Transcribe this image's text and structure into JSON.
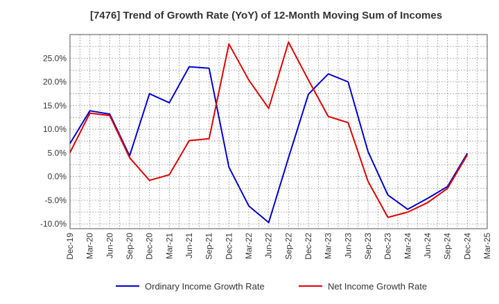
{
  "chart_data": {
    "type": "line",
    "title": "[7476]  Trend of Growth Rate (YoY) of 12-Month Moving Sum of Incomes",
    "xlabel": "",
    "ylabel": "",
    "categories": [
      "Dec-19",
      "Mar-20",
      "Jun-20",
      "Sep-20",
      "Dec-20",
      "Mar-21",
      "Jun-21",
      "Sep-21",
      "Dec-21",
      "Mar-22",
      "Jun-22",
      "Sep-22",
      "Dec-22",
      "Mar-23",
      "Jun-23",
      "Sep-23",
      "Dec-23",
      "Mar-24",
      "Jun-24",
      "Sep-24",
      "Dec-24",
      "Mar-25"
    ],
    "y_ticks": [
      "25.0%",
      "20.0%",
      "15.0%",
      "10.0%",
      "5.0%",
      "0.0%",
      "-5.0%",
      "-10.0%"
    ],
    "y_tick_values": [
      25,
      20,
      15,
      10,
      5,
      0,
      -5,
      -10
    ],
    "ylim": [
      -11,
      30
    ],
    "grid": true,
    "legend_position": "bottom",
    "series": [
      {
        "name": "Ordinary Income Growth Rate",
        "color": "#0000cc",
        "values": [
          7.0,
          13.9,
          13.2,
          4.4,
          17.5,
          15.6,
          23.2,
          22.9,
          2.0,
          -6.2,
          -9.7,
          4.0,
          17.4,
          21.7,
          20.0,
          5.3,
          -3.9,
          -6.9,
          -4.6,
          -2.1,
          4.9,
          null
        ]
      },
      {
        "name": "Net Income Growth Rate",
        "color": "#dd0000",
        "values": [
          5.1,
          13.4,
          12.9,
          4.0,
          -0.8,
          0.4,
          7.6,
          8.0,
          28.0,
          20.4,
          14.4,
          28.4,
          20.4,
          12.7,
          11.4,
          -1.0,
          -8.6,
          -7.5,
          -5.5,
          -2.5,
          4.6,
          null
        ]
      }
    ]
  }
}
